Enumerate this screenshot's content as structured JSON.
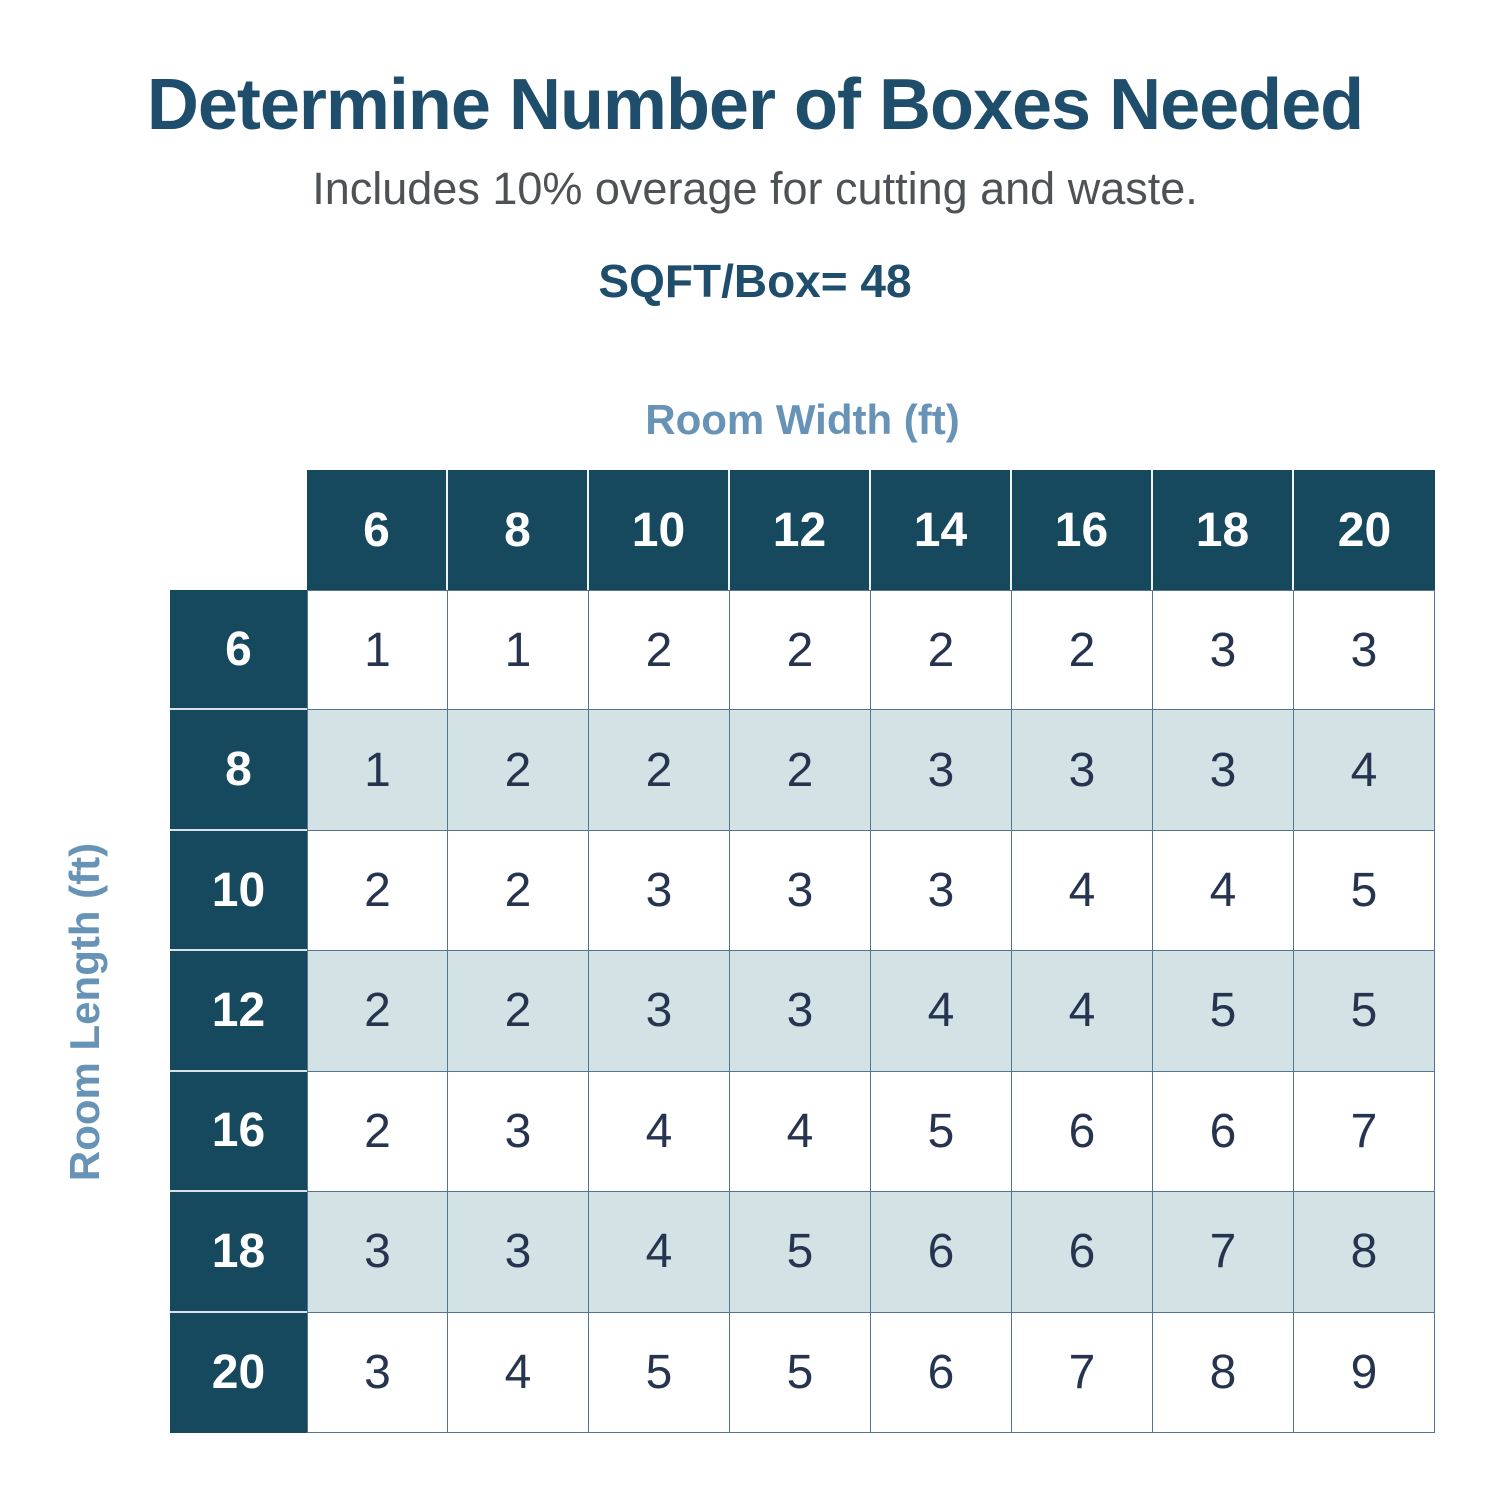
{
  "header": {
    "title": "Determine Number of Boxes Needed",
    "subtitle": "Includes 10% overage for cutting and waste.",
    "sqft_per_box_label": "SQFT/Box= 48"
  },
  "colors": {
    "title_text": "#1E4E6B",
    "subtitle_text": "#4F5254",
    "axis_label_text": "#6793B7",
    "header_cell_bg": "#17495E",
    "header_cell_text": "#FFFFFF",
    "alt_row_bg": "#D3E2E5",
    "body_text": "#26344F",
    "grid_border": "#54748F"
  },
  "chart_data": {
    "type": "table",
    "title": "Determine Number of Boxes Needed",
    "subtitle": "Includes 10% overage for cutting and waste.",
    "sqft_per_box": 48,
    "x_axis_label": "Room Width (ft)",
    "y_axis_label": "Room Length (ft)",
    "columns": [
      "6",
      "8",
      "10",
      "12",
      "14",
      "16",
      "18",
      "20"
    ],
    "rows": [
      {
        "length": "6",
        "values": [
          "1",
          "1",
          "2",
          "2",
          "2",
          "2",
          "3",
          "3"
        ]
      },
      {
        "length": "8",
        "values": [
          "1",
          "2",
          "2",
          "2",
          "3",
          "3",
          "3",
          "4"
        ]
      },
      {
        "length": "10",
        "values": [
          "2",
          "2",
          "3",
          "3",
          "3",
          "4",
          "4",
          "5"
        ]
      },
      {
        "length": "12",
        "values": [
          "2",
          "2",
          "3",
          "3",
          "4",
          "4",
          "5",
          "5"
        ]
      },
      {
        "length": "16",
        "values": [
          "2",
          "3",
          "4",
          "4",
          "5",
          "6",
          "6",
          "7"
        ]
      },
      {
        "length": "18",
        "values": [
          "3",
          "3",
          "4",
          "5",
          "6",
          "6",
          "7",
          "8"
        ]
      },
      {
        "length": "20",
        "values": [
          "3",
          "4",
          "5",
          "5",
          "6",
          "7",
          "8",
          "9"
        ]
      }
    ]
  }
}
